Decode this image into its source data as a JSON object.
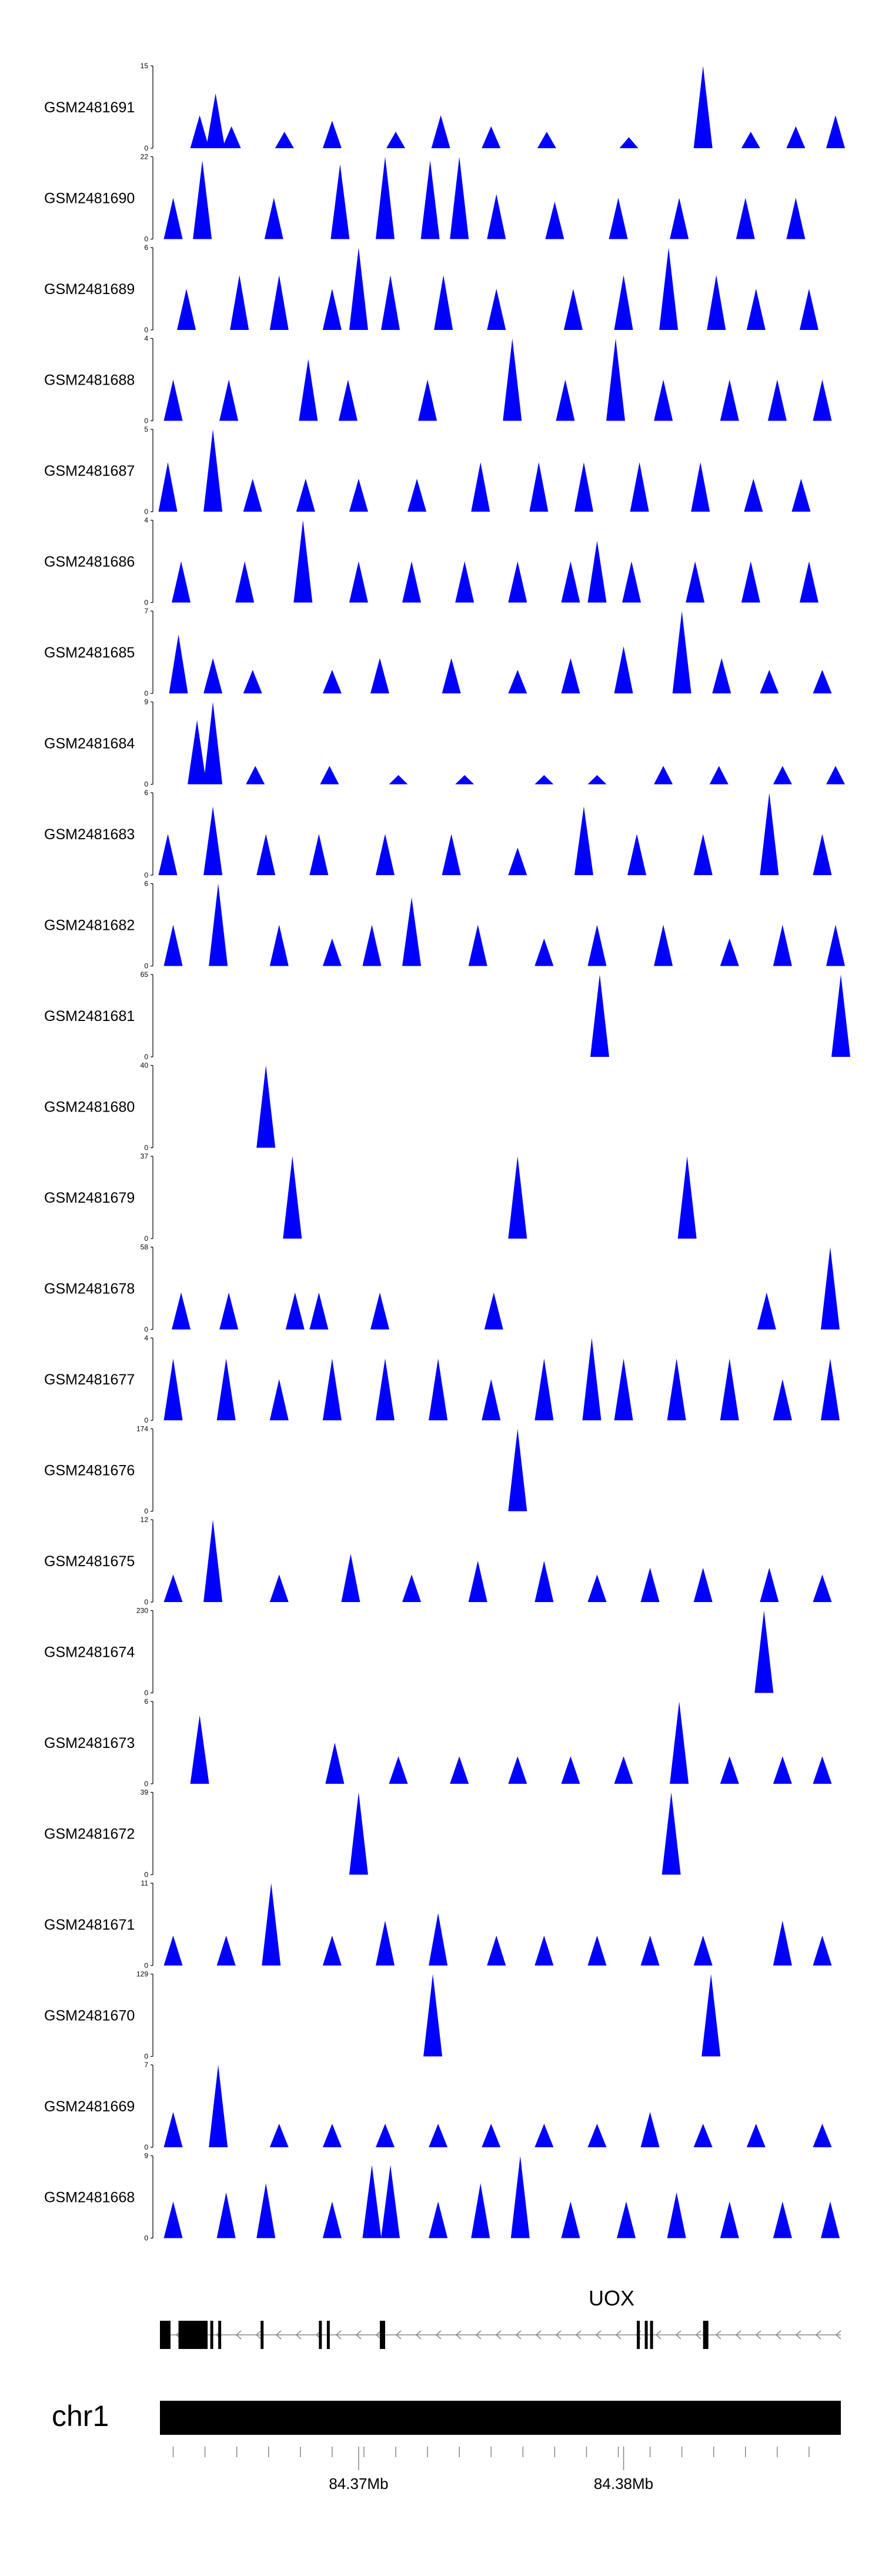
{
  "chart_data": {
    "type": "area",
    "title": "",
    "x_axis": {
      "unit": "Mb",
      "range": [
        84.3625,
        84.3882
      ],
      "ticks": [
        {
          "value": 84.37,
          "label": "84.37Mb"
        },
        {
          "value": 84.38,
          "label": "84.38Mb"
        }
      ]
    },
    "fill_color": "#0000ff",
    "tracks": [
      {
        "name": "GSM2481691",
        "ymax": 15,
        "peaks": [
          [
            84.364,
            6
          ],
          [
            84.3646,
            10
          ],
          [
            84.3652,
            4
          ],
          [
            84.3672,
            3
          ],
          [
            84.369,
            5
          ],
          [
            84.3714,
            3
          ],
          [
            84.3731,
            6
          ],
          [
            84.375,
            4
          ],
          [
            84.3771,
            3
          ],
          [
            84.3802,
            2
          ],
          [
            84.383,
            15
          ],
          [
            84.3848,
            3
          ],
          [
            84.3865,
            4
          ],
          [
            84.388,
            6
          ]
        ]
      },
      {
        "name": "GSM2481690",
        "ymax": 22,
        "peaks": [
          [
            84.363,
            11
          ],
          [
            84.3641,
            21
          ],
          [
            84.3668,
            11
          ],
          [
            84.3693,
            20
          ],
          [
            84.371,
            22
          ],
          [
            84.3727,
            21
          ],
          [
            84.3738,
            22
          ],
          [
            84.3752,
            12
          ],
          [
            84.3774,
            10
          ],
          [
            84.3798,
            11
          ],
          [
            84.3821,
            11
          ],
          [
            84.3846,
            11
          ],
          [
            84.3865,
            11
          ]
        ]
      },
      {
        "name": "GSM2481689",
        "ymax": 6,
        "peaks": [
          [
            84.3635,
            3
          ],
          [
            84.3655,
            4
          ],
          [
            84.367,
            4
          ],
          [
            84.369,
            3
          ],
          [
            84.37,
            6
          ],
          [
            84.3712,
            4
          ],
          [
            84.3732,
            4
          ],
          [
            84.3752,
            3
          ],
          [
            84.3781,
            3
          ],
          [
            84.38,
            4
          ],
          [
            84.3817,
            6
          ],
          [
            84.3835,
            4
          ],
          [
            84.385,
            3
          ],
          [
            84.387,
            3
          ]
        ]
      },
      {
        "name": "GSM2481688",
        "ymax": 4,
        "peaks": [
          [
            84.363,
            2
          ],
          [
            84.3651,
            2
          ],
          [
            84.3681,
            3
          ],
          [
            84.3696,
            2
          ],
          [
            84.3726,
            2
          ],
          [
            84.3758,
            4
          ],
          [
            84.3778,
            2
          ],
          [
            84.3797,
            4
          ],
          [
            84.3815,
            2
          ],
          [
            84.384,
            2
          ],
          [
            84.3858,
            2
          ],
          [
            84.3875,
            2
          ]
        ]
      },
      {
        "name": "GSM2481687",
        "ymax": 5,
        "peaks": [
          [
            84.3628,
            3
          ],
          [
            84.3645,
            5
          ],
          [
            84.366,
            2
          ],
          [
            84.368,
            2
          ],
          [
            84.37,
            2
          ],
          [
            84.3722,
            2
          ],
          [
            84.3746,
            3
          ],
          [
            84.3768,
            3
          ],
          [
            84.3785,
            3
          ],
          [
            84.3806,
            3
          ],
          [
            84.3829,
            3
          ],
          [
            84.3849,
            2
          ],
          [
            84.3867,
            2
          ]
        ]
      },
      {
        "name": "GSM2481686",
        "ymax": 4,
        "peaks": [
          [
            84.3633,
            2
          ],
          [
            84.3657,
            2
          ],
          [
            84.3679,
            4
          ],
          [
            84.37,
            2
          ],
          [
            84.372,
            2
          ],
          [
            84.374,
            2
          ],
          [
            84.376,
            2
          ],
          [
            84.378,
            2
          ],
          [
            84.379,
            3
          ],
          [
            84.3803,
            2
          ],
          [
            84.3827,
            2
          ],
          [
            84.3848,
            2
          ],
          [
            84.387,
            2
          ]
        ]
      },
      {
        "name": "GSM2481685",
        "ymax": 7,
        "peaks": [
          [
            84.3632,
            5
          ],
          [
            84.3645,
            3
          ],
          [
            84.366,
            2
          ],
          [
            84.369,
            2
          ],
          [
            84.3708,
            3
          ],
          [
            84.3735,
            3
          ],
          [
            84.376,
            2
          ],
          [
            84.378,
            3
          ],
          [
            84.38,
            4
          ],
          [
            84.3822,
            7
          ],
          [
            84.3837,
            3
          ],
          [
            84.3855,
            2
          ],
          [
            84.3875,
            2
          ]
        ]
      },
      {
        "name": "GSM2481684",
        "ymax": 9,
        "peaks": [
          [
            84.3639,
            7
          ],
          [
            84.3645,
            9
          ],
          [
            84.3661,
            2
          ],
          [
            84.3689,
            2
          ],
          [
            84.3715,
            1
          ],
          [
            84.374,
            1
          ],
          [
            84.377,
            1
          ],
          [
            84.379,
            1
          ],
          [
            84.3815,
            2
          ],
          [
            84.3836,
            2
          ],
          [
            84.386,
            2
          ],
          [
            84.388,
            2
          ]
        ]
      },
      {
        "name": "GSM2481683",
        "ymax": 6,
        "peaks": [
          [
            84.3628,
            3
          ],
          [
            84.3645,
            5
          ],
          [
            84.3665,
            3
          ],
          [
            84.3685,
            3
          ],
          [
            84.371,
            3
          ],
          [
            84.3735,
            3
          ],
          [
            84.376,
            2
          ],
          [
            84.3785,
            5
          ],
          [
            84.3805,
            3
          ],
          [
            84.383,
            3
          ],
          [
            84.3855,
            6
          ],
          [
            84.3875,
            3
          ]
        ]
      },
      {
        "name": "GSM2481682",
        "ymax": 6,
        "peaks": [
          [
            84.363,
            3
          ],
          [
            84.3647,
            6
          ],
          [
            84.367,
            3
          ],
          [
            84.369,
            2
          ],
          [
            84.3705,
            3
          ],
          [
            84.372,
            5
          ],
          [
            84.3745,
            3
          ],
          [
            84.377,
            2
          ],
          [
            84.379,
            3
          ],
          [
            84.3815,
            3
          ],
          [
            84.384,
            2
          ],
          [
            84.386,
            3
          ],
          [
            84.388,
            3
          ]
        ]
      },
      {
        "name": "GSM2481681",
        "ymax": 65,
        "peaks": [
          [
            84.3791,
            65
          ],
          [
            84.3882,
            65
          ]
        ]
      },
      {
        "name": "GSM2481680",
        "ymax": 40,
        "peaks": [
          [
            84.3665,
            40
          ]
        ]
      },
      {
        "name": "GSM2481679",
        "ymax": 37,
        "peaks": [
          [
            84.3675,
            37
          ],
          [
            84.376,
            37
          ],
          [
            84.3824,
            37
          ]
        ]
      },
      {
        "name": "GSM2481678",
        "ymax": 58,
        "peaks": [
          [
            84.3633,
            26
          ],
          [
            84.3651,
            26
          ],
          [
            84.3676,
            26
          ],
          [
            84.3685,
            26
          ],
          [
            84.3708,
            26
          ],
          [
            84.3751,
            26
          ],
          [
            84.3854,
            26
          ],
          [
            84.3878,
            58
          ]
        ]
      },
      {
        "name": "GSM2481677",
        "ymax": 4,
        "peaks": [
          [
            84.363,
            3
          ],
          [
            84.365,
            3
          ],
          [
            84.367,
            2
          ],
          [
            84.369,
            3
          ],
          [
            84.371,
            3
          ],
          [
            84.373,
            3
          ],
          [
            84.375,
            2
          ],
          [
            84.377,
            3
          ],
          [
            84.3788,
            4
          ],
          [
            84.38,
            3
          ],
          [
            84.382,
            3
          ],
          [
            84.384,
            3
          ],
          [
            84.386,
            2
          ],
          [
            84.3878,
            3
          ]
        ]
      },
      {
        "name": "GSM2481676",
        "ymax": 174,
        "peaks": [
          [
            84.376,
            174
          ]
        ]
      },
      {
        "name": "GSM2481675",
        "ymax": 12,
        "peaks": [
          [
            84.363,
            4
          ],
          [
            84.3645,
            12
          ],
          [
            84.367,
            4
          ],
          [
            84.3697,
            7
          ],
          [
            84.372,
            4
          ],
          [
            84.3745,
            6
          ],
          [
            84.377,
            6
          ],
          [
            84.379,
            4
          ],
          [
            84.381,
            5
          ],
          [
            84.383,
            5
          ],
          [
            84.3855,
            5
          ],
          [
            84.3875,
            4
          ]
        ]
      },
      {
        "name": "GSM2481674",
        "ymax": 230,
        "peaks": [
          [
            84.3853,
            230
          ]
        ]
      },
      {
        "name": "GSM2481673",
        "ymax": 6,
        "peaks": [
          [
            84.364,
            5
          ],
          [
            84.3691,
            3
          ],
          [
            84.3715,
            2
          ],
          [
            84.3738,
            2
          ],
          [
            84.376,
            2
          ],
          [
            84.378,
            2
          ],
          [
            84.38,
            2
          ],
          [
            84.3821,
            6
          ],
          [
            84.384,
            2
          ],
          [
            84.386,
            2
          ],
          [
            84.3875,
            2
          ]
        ]
      },
      {
        "name": "GSM2481672",
        "ymax": 39,
        "peaks": [
          [
            84.37,
            39
          ],
          [
            84.3818,
            39
          ]
        ]
      },
      {
        "name": "GSM2481671",
        "ymax": 11,
        "peaks": [
          [
            84.363,
            4
          ],
          [
            84.365,
            4
          ],
          [
            84.3667,
            11
          ],
          [
            84.369,
            4
          ],
          [
            84.371,
            6
          ],
          [
            84.373,
            7
          ],
          [
            84.3752,
            4
          ],
          [
            84.377,
            4
          ],
          [
            84.379,
            4
          ],
          [
            84.381,
            4
          ],
          [
            84.383,
            4
          ],
          [
            84.386,
            6
          ],
          [
            84.3875,
            4
          ]
        ]
      },
      {
        "name": "GSM2481670",
        "ymax": 129,
        "peaks": [
          [
            84.3728,
            129
          ],
          [
            84.3833,
            129
          ]
        ]
      },
      {
        "name": "GSM2481669",
        "ymax": 7,
        "peaks": [
          [
            84.363,
            3
          ],
          [
            84.3647,
            7
          ],
          [
            84.367,
            2
          ],
          [
            84.369,
            2
          ],
          [
            84.371,
            2
          ],
          [
            84.373,
            2
          ],
          [
            84.375,
            2
          ],
          [
            84.377,
            2
          ],
          [
            84.379,
            2
          ],
          [
            84.381,
            3
          ],
          [
            84.383,
            2
          ],
          [
            84.385,
            2
          ],
          [
            84.3875,
            2
          ]
        ]
      },
      {
        "name": "GSM2481668",
        "ymax": 9,
        "peaks": [
          [
            84.363,
            4
          ],
          [
            84.365,
            5
          ],
          [
            84.3665,
            6
          ],
          [
            84.369,
            4
          ],
          [
            84.3705,
            8
          ],
          [
            84.3712,
            8
          ],
          [
            84.373,
            4
          ],
          [
            84.3746,
            6
          ],
          [
            84.3761,
            9
          ],
          [
            84.378,
            4
          ],
          [
            84.3801,
            4
          ],
          [
            84.382,
            5
          ],
          [
            84.384,
            4
          ],
          [
            84.386,
            4
          ],
          [
            84.3878,
            4
          ]
        ]
      }
    ],
    "gene_track": {
      "label": "UOX",
      "strand": "-",
      "range": [
        84.3625,
        84.3882
      ],
      "exons": [
        [
          84.3625,
          84.3629
        ],
        [
          84.3632,
          84.3643
        ],
        [
          84.3644,
          84.3645
        ],
        [
          84.3647,
          84.3648
        ],
        [
          84.3663,
          84.3664
        ],
        [
          84.3685,
          84.3686
        ],
        [
          84.3688,
          84.3689
        ],
        [
          84.3708,
          84.371
        ],
        [
          84.3805,
          84.3806
        ],
        [
          84.3808,
          84.3809
        ],
        [
          84.381,
          84.3811
        ],
        [
          84.383,
          84.3832
        ]
      ]
    },
    "ideogram": {
      "label": "chr1"
    }
  }
}
